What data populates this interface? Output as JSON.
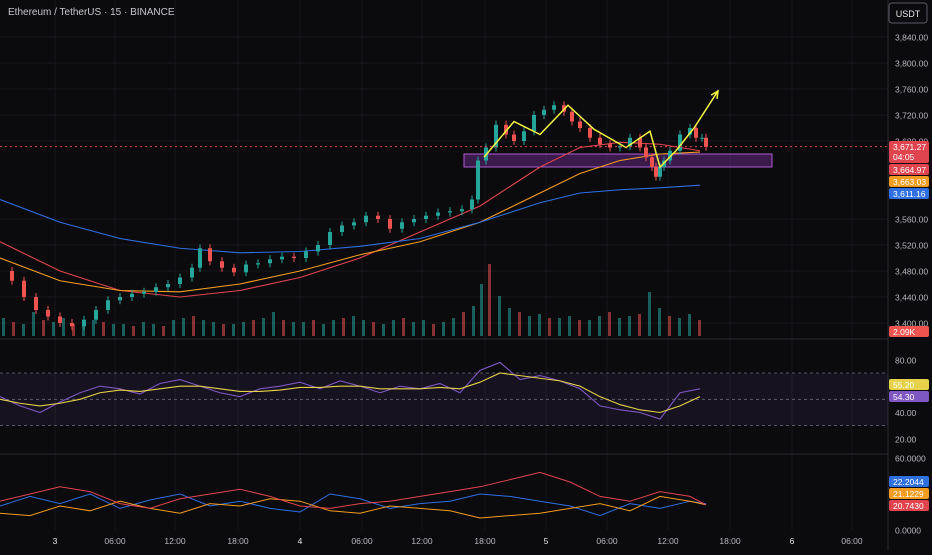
{
  "header": {
    "symbol_title": "Ethereum / TetherUS · 15 · BINANCE",
    "currency_button": "USDT"
  },
  "colors": {
    "background": "#0b0b0e",
    "candle_up": "#26a69a",
    "candle_down": "#ef5350",
    "ma_red": "#e0454f",
    "ma_orange": "#f39c1f",
    "ma_blue": "#2f6fe0",
    "rsi_line": "#7e57c2",
    "rsi_ma": "#e6d24a",
    "zone_fill": "#6a2b8a",
    "annotation_yellow": "#f5f542"
  },
  "price_badges": [
    {
      "name": "last-price",
      "label": "3,671.27",
      "sub": "04:05",
      "color": "#e0454f",
      "value": 3671.27
    },
    {
      "name": "ma-red",
      "label": "3,664.97",
      "color": "#e0454f",
      "value": 3664.97
    },
    {
      "name": "ma-orange",
      "label": "3,663.03",
      "color": "#f39c1f",
      "value": 3663.03
    },
    {
      "name": "ma-blue",
      "label": "3,611.16",
      "color": "#2f6fe0",
      "value": 3611.16
    }
  ],
  "volume_badge": "2.09K",
  "rsi_badges": [
    {
      "label": "55.20",
      "color": "#e6d24a",
      "value": 55.2
    },
    {
      "label": "54.30",
      "color": "#7e57c2",
      "value": 54.3
    }
  ],
  "dmi_badges": [
    {
      "label": "22.2044",
      "color": "#2f6fe0",
      "value": 22.2044
    },
    {
      "label": "21.1229",
      "color": "#f39c1f",
      "value": 21.1229
    },
    {
      "label": "20.7430",
      "color": "#e0454f",
      "value": 20.743
    }
  ],
  "chart_data": {
    "type": "line",
    "price_axis": {
      "ticks": [
        "3,840.00",
        "3,800.00",
        "3,760.00",
        "3,720.00",
        "3,680.00",
        "3,560.00",
        "3,520.00",
        "3,480.00",
        "3,440.00",
        "3,400.00"
      ],
      "range": [
        3380,
        3860
      ]
    },
    "rsi_axis": {
      "ticks": [
        "80.00",
        "40.00",
        "20.00"
      ],
      "range": [
        10,
        92
      ]
    },
    "dmi_axis": {
      "ticks": [
        "60.0000",
        "0.0000"
      ],
      "range": [
        0,
        60
      ]
    },
    "time_axis": [
      "3",
      "06:00",
      "12:00",
      "18:00",
      "4",
      "06:00",
      "12:00",
      "18:00",
      "5",
      "06:00",
      "12:00",
      "18:00",
      "6",
      "06:00"
    ],
    "price_series": {
      "name": "ETHUSDT",
      "x": [
        0,
        12,
        24,
        36,
        48,
        60,
        72,
        84,
        96,
        108,
        120,
        132,
        144,
        156,
        168,
        180,
        192,
        200,
        210,
        222,
        234,
        246,
        258,
        270,
        282,
        294,
        306,
        318,
        330,
        342,
        354,
        366,
        378,
        390,
        402,
        414,
        426,
        438,
        450,
        462,
        472,
        478,
        486,
        496,
        506,
        514,
        524,
        534,
        544,
        554,
        564,
        572,
        580,
        590,
        600,
        610,
        620,
        630,
        640,
        646,
        652,
        656,
        660,
        664,
        670,
        680,
        690,
        696,
        702,
        706
      ],
      "y": [
        3480,
        3465,
        3440,
        3420,
        3410,
        3400,
        3395,
        3405,
        3420,
        3435,
        3440,
        3445,
        3448,
        3455,
        3460,
        3470,
        3485,
        3515,
        3495,
        3485,
        3478,
        3490,
        3492,
        3498,
        3502,
        3500,
        3510,
        3520,
        3540,
        3550,
        3555,
        3565,
        3560,
        3545,
        3555,
        3560,
        3565,
        3570,
        3572,
        3575,
        3590,
        3650,
        3670,
        3705,
        3690,
        3680,
        3695,
        3720,
        3728,
        3735,
        3725,
        3710,
        3700,
        3685,
        3675,
        3670,
        3672,
        3685,
        3670,
        3655,
        3640,
        3625,
        3640,
        3650,
        3665,
        3690,
        3700,
        3685,
        3685,
        3671
      ]
    },
    "ma_red": {
      "x": [
        0,
        60,
        120,
        180,
        240,
        300,
        360,
        420,
        480,
        540,
        580,
        620,
        660,
        700
      ],
      "y": [
        3525,
        3480,
        3450,
        3440,
        3450,
        3470,
        3500,
        3540,
        3580,
        3640,
        3670,
        3678,
        3675,
        3665
      ]
    },
    "ma_orange": {
      "x": [
        0,
        60,
        120,
        180,
        240,
        300,
        360,
        420,
        480,
        540,
        580,
        620,
        660,
        700
      ],
      "y": [
        3500,
        3465,
        3450,
        3448,
        3460,
        3480,
        3505,
        3525,
        3555,
        3600,
        3630,
        3650,
        3660,
        3663
      ]
    },
    "ma_blue": {
      "x": [
        0,
        60,
        120,
        180,
        240,
        300,
        360,
        420,
        480,
        540,
        580,
        620,
        660,
        700
      ],
      "y": [
        3590,
        3555,
        3530,
        3515,
        3508,
        3510,
        3518,
        3530,
        3555,
        3585,
        3600,
        3605,
        3608,
        3612
      ]
    },
    "zone": {
      "x": [
        464,
        772
      ],
      "y": [
        3640,
        3660
      ]
    },
    "annotations": [
      {
        "type": "zigzag",
        "x": [
          484,
          514,
          540,
          568,
          594,
          626,
          650,
          660,
          676,
          694
        ],
        "y": [
          3655,
          3710,
          3690,
          3735,
          3698,
          3670,
          3695,
          3640,
          3665,
          3700
        ]
      },
      {
        "type": "arrow",
        "x": [
          694,
          718
        ],
        "y": [
          3700,
          3757
        ]
      }
    ],
    "volume": {
      "x": [
        0,
        10,
        20,
        30,
        40,
        50,
        60,
        70,
        80,
        90,
        100,
        110,
        120,
        130,
        140,
        150,
        160,
        170,
        180,
        190,
        200,
        210,
        220,
        230,
        240,
        250,
        260,
        270,
        280,
        290,
        300,
        310,
        320,
        330,
        340,
        350,
        360,
        370,
        380,
        390,
        400,
        410,
        420,
        430,
        440,
        450,
        460,
        470,
        478,
        486,
        496,
        506,
        516,
        526,
        536,
        546,
        556,
        566,
        576,
        586,
        596,
        606,
        616,
        626,
        636,
        646,
        656,
        666,
        676,
        686,
        696
      ],
      "v": [
        0.9,
        0.7,
        0.6,
        1.2,
        0.8,
        0.7,
        0.9,
        0.6,
        0.5,
        0.8,
        0.7,
        0.6,
        0.6,
        0.5,
        0.7,
        0.6,
        0.5,
        0.8,
        0.9,
        1.0,
        0.8,
        0.7,
        0.6,
        0.6,
        0.7,
        0.8,
        0.9,
        1.2,
        0.8,
        0.7,
        0.7,
        0.8,
        0.6,
        0.8,
        0.9,
        1.0,
        0.8,
        0.7,
        0.6,
        0.8,
        0.9,
        0.7,
        0.8,
        0.6,
        0.7,
        0.9,
        1.2,
        1.5,
        2.6,
        3.6,
        2.0,
        1.4,
        1.2,
        1.0,
        1.1,
        0.9,
        0.9,
        1.0,
        0.8,
        0.8,
        1.0,
        1.2,
        0.9,
        1.0,
        1.1,
        2.2,
        1.4,
        1.0,
        0.9,
        1.1,
        0.8
      ]
    },
    "rsi": {
      "x": [
        0,
        20,
        40,
        60,
        80,
        100,
        120,
        140,
        160,
        180,
        200,
        220,
        240,
        260,
        280,
        300,
        320,
        340,
        360,
        380,
        400,
        420,
        440,
        460,
        480,
        500,
        520,
        540,
        560,
        580,
        600,
        620,
        640,
        660,
        680,
        700
      ],
      "y": [
        52,
        45,
        40,
        48,
        55,
        60,
        58,
        54,
        62,
        65,
        60,
        55,
        52,
        58,
        60,
        63,
        58,
        64,
        60,
        55,
        60,
        58,
        62,
        55,
        72,
        78,
        65,
        68,
        64,
        58,
        45,
        42,
        40,
        35,
        55,
        58
      ],
      "ma": [
        50,
        47,
        45,
        47,
        50,
        55,
        57,
        56,
        58,
        60,
        60,
        58,
        56,
        56,
        57,
        59,
        59,
        60,
        60,
        58,
        58,
        58,
        59,
        58,
        63,
        70,
        68,
        66,
        64,
        60,
        52,
        46,
        42,
        40,
        45,
        52
      ],
      "bands": [
        30,
        50,
        70
      ]
    },
    "dmi": {
      "x": [
        0,
        30,
        60,
        90,
        120,
        150,
        180,
        210,
        240,
        270,
        300,
        330,
        360,
        390,
        420,
        450,
        480,
        510,
        540,
        570,
        600,
        630,
        660,
        690,
        706
      ],
      "plus": [
        20,
        28,
        22,
        30,
        18,
        25,
        30,
        20,
        24,
        18,
        15,
        30,
        26,
        18,
        22,
        24,
        30,
        28,
        24,
        20,
        12,
        22,
        18,
        24,
        22
      ],
      "minus": [
        14,
        12,
        20,
        16,
        24,
        18,
        14,
        22,
        20,
        26,
        24,
        16,
        14,
        20,
        18,
        16,
        10,
        12,
        14,
        18,
        22,
        16,
        28,
        24,
        21
      ],
      "adx": [
        24,
        30,
        36,
        32,
        22,
        18,
        26,
        30,
        34,
        28,
        20,
        18,
        22,
        24,
        28,
        32,
        36,
        42,
        48,
        40,
        28,
        24,
        32,
        28,
        21
      ]
    }
  }
}
